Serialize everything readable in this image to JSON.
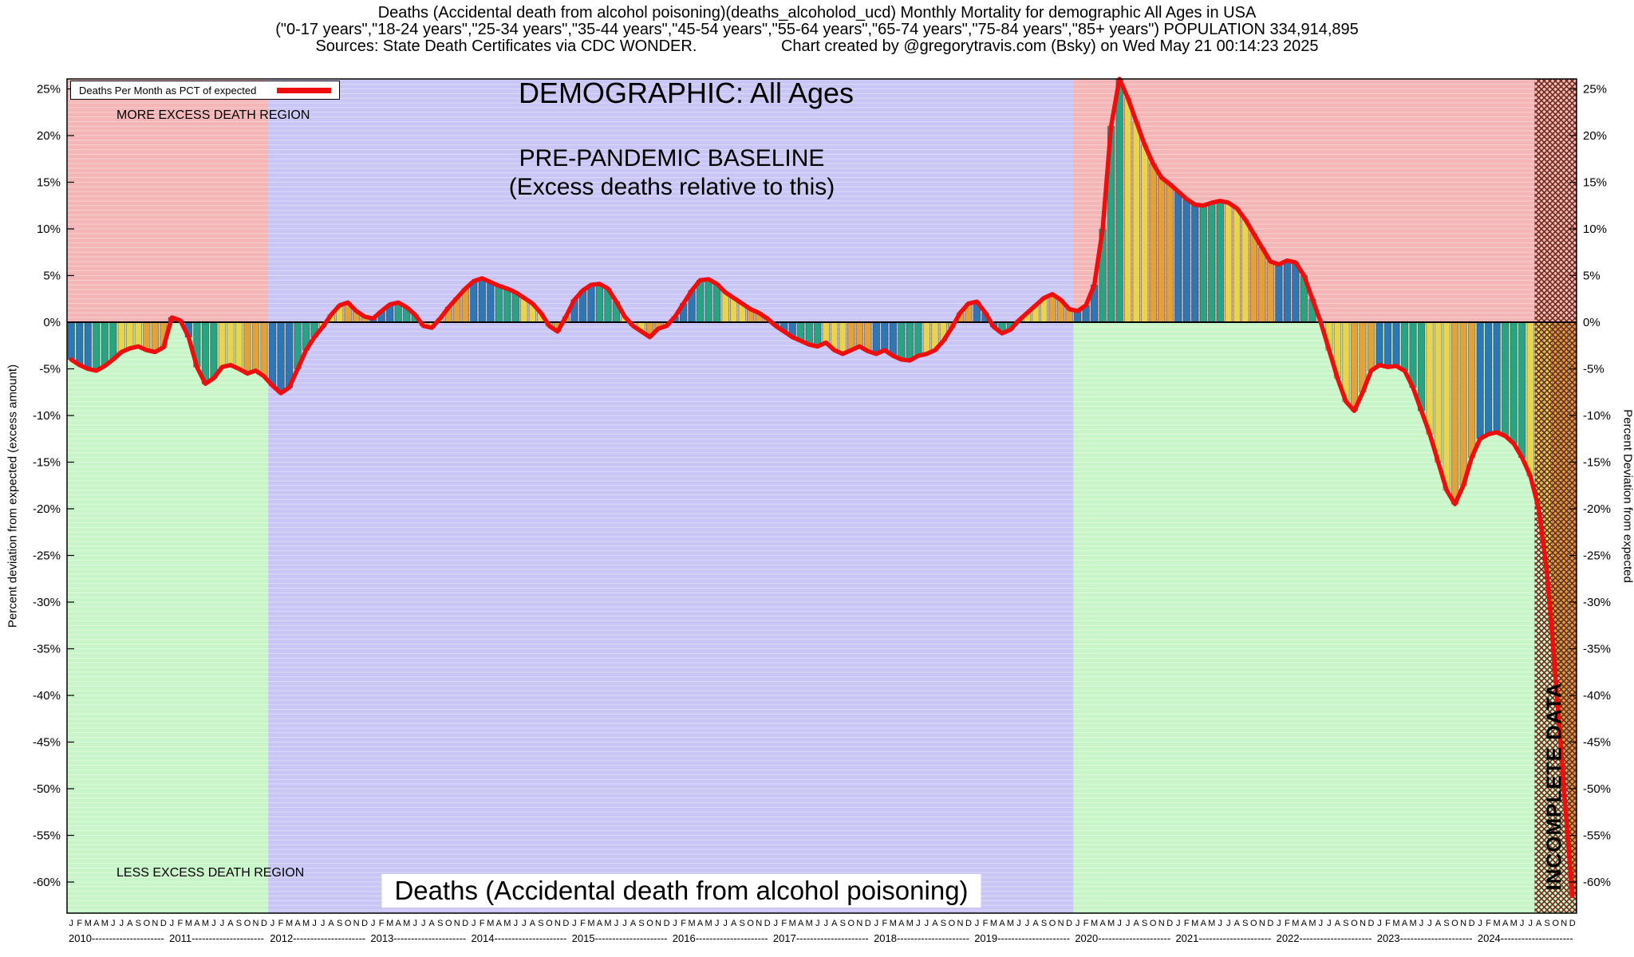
{
  "titles": {
    "line1": "Deaths (Accidental death from alcohol poisoning)(deaths_alcoholod_ucd) Monthly Mortality for demographic All Ages in USA",
    "line2": "(\"0-17 years\",\"18-24 years\",\"25-34 years\",\"35-44 years\",\"45-54 years\",\"55-64 years\",\"65-74 years\",\"75-84 years\",\"85+ years\") POPULATION 334,914,895",
    "line3_sources": "Sources: State Death Certificates via CDC WONDER.",
    "line3_credit": "Chart created by @gregorytravis.com (Bsky) on Wed May 21 00:14:23 2025"
  },
  "legend": {
    "label": "Deaths Per Month as PCT of expected"
  },
  "annotations": {
    "more_excess": "MORE EXCESS DEATH REGION",
    "less_excess": "LESS EXCESS DEATH REGION",
    "demographic": "DEMOGRAPHIC: All Ages",
    "baseline_title": "PRE-PANDEMIC BASELINE",
    "baseline_sub": "(Excess deaths relative to this)",
    "bottom_label": "Deaths (Accidental death from alcohol poisoning)",
    "incomplete": "INCOMPLETE DATA",
    "y_axis_left": "Percent deviation from expected (excess amount)",
    "y_axis_right": "Percent Deviation from expected"
  },
  "chart_data": {
    "type": "bar",
    "series_name": "Deaths Per Month as PCT of expected",
    "unit": "%",
    "ylim": [
      -63,
      26
    ],
    "yticks": [
      25,
      20,
      15,
      10,
      5,
      0,
      -5,
      -10,
      -15,
      -20,
      -25,
      -30,
      -35,
      -40,
      -45,
      -50,
      -55,
      -60
    ],
    "month_letters": "JFMAMJJASOND",
    "years": [
      2010,
      2011,
      2012,
      2013,
      2014,
      2015,
      2016,
      2017,
      2018,
      2019,
      2020,
      2021,
      2022,
      2023,
      2024
    ],
    "monthly_pct_deviation": {
      "2010": [
        -4.0,
        -4.6,
        -5.0,
        -5.2,
        -4.7,
        -4.0,
        -3.2,
        -2.8,
        -2.6,
        -3.0,
        -3.2,
        -2.7
      ],
      "2011": [
        0.5,
        0.2,
        -1.6,
        -4.8,
        -6.6,
        -6.0,
        -4.8,
        -4.6,
        -5.0,
        -5.5,
        -5.2,
        -5.8
      ],
      "2012": [
        -6.8,
        -7.6,
        -7.0,
        -5.0,
        -3.0,
        -1.6,
        -0.5,
        0.8,
        1.8,
        2.1,
        1.2,
        0.6
      ],
      "2013": [
        0.4,
        1.2,
        1.9,
        2.1,
        1.6,
        0.8,
        -0.4,
        -0.6,
        0.4,
        1.6,
        2.6,
        3.6
      ],
      "2014": [
        4.4,
        4.7,
        4.3,
        3.9,
        3.6,
        3.2,
        2.6,
        2.0,
        1.0,
        -0.4,
        -1.0,
        0.6
      ],
      "2015": [
        2.4,
        3.4,
        4.0,
        4.1,
        3.6,
        2.2,
        0.6,
        -0.4,
        -1.0,
        -1.6,
        -0.7,
        -0.4
      ],
      "2016": [
        0.6,
        2.0,
        3.4,
        4.5,
        4.6,
        4.1,
        3.2,
        2.6,
        2.0,
        1.4,
        1.0,
        0.4
      ],
      "2017": [
        -0.4,
        -1.0,
        -1.6,
        -2.0,
        -2.4,
        -2.6,
        -2.2,
        -3.0,
        -3.4,
        -3.0,
        -2.6,
        -3.1
      ],
      "2018": [
        -3.4,
        -3.0,
        -3.6,
        -4.0,
        -4.1,
        -3.6,
        -3.4,
        -3.0,
        -2.0,
        -0.6,
        1.0,
        2.0
      ],
      "2019": [
        2.2,
        1.0,
        -0.5,
        -1.2,
        -0.8,
        0.2,
        1.0,
        1.8,
        2.6,
        3.0,
        2.4,
        1.4
      ],
      "2020": [
        1.2,
        1.8,
        4.0,
        10.0,
        21.0,
        26.2,
        24.0,
        21.5,
        19.0,
        17.0,
        15.5,
        14.8
      ],
      "2021": [
        14.0,
        13.2,
        12.6,
        12.5,
        12.8,
        13.0,
        12.8,
        12.2,
        11.0,
        9.5,
        8.0,
        6.5
      ],
      "2022": [
        6.2,
        6.6,
        6.4,
        5.0,
        2.5,
        0.0,
        -3.0,
        -6.0,
        -8.5,
        -9.5,
        -7.5,
        -5.2
      ],
      "2023": [
        -4.6,
        -4.8,
        -4.7,
        -5.2,
        -7.0,
        -9.5,
        -12.0,
        -15.0,
        -18.0,
        -19.5,
        -17.5,
        -14.5
      ],
      "2024": [
        -12.5,
        -12.0,
        -11.8,
        -12.2,
        -13.0,
        -14.5,
        -16.5,
        -20.0,
        -27.0,
        -38.0,
        -50.0,
        -61.5
      ]
    },
    "baseline_region": {
      "from": "2012-01",
      "to": "2019-12"
    },
    "incomplete_region": {
      "from": "2024-08",
      "to": "2024-12"
    },
    "line_color": "#ee0e0e",
    "bar_quarter_colors": [
      "#2d77b2",
      "#2aa384",
      "#e8d44f",
      "#e2a23b"
    ],
    "incomplete_hatch_color": "#6e2b1b",
    "region_colors": {
      "more_excess": "#f3b5b5",
      "less_excess": "#c8f5c8",
      "baseline": "#c9c5f4"
    }
  }
}
